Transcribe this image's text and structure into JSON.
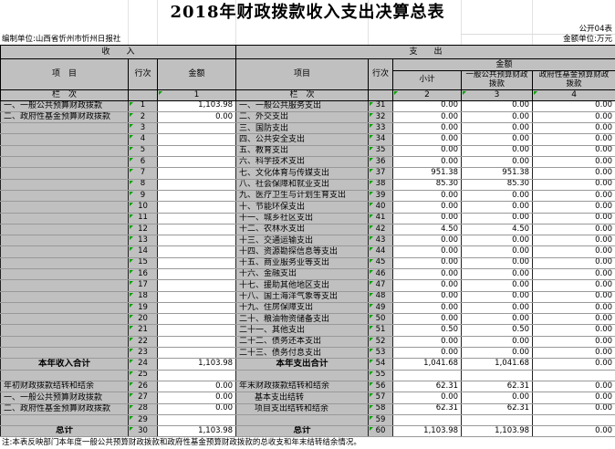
{
  "title": "2018年财政拨款收入支出决算总表",
  "meta": {
    "sheet_label": "公开04表",
    "org_label": "编制单位:山西省忻州市忻州日报社",
    "unit_label": "金额单位:万元"
  },
  "bands": {
    "income": "收　　入",
    "expense": "支　　出"
  },
  "columns": {
    "income_item": "项　目",
    "income_line": "行次",
    "income_amount": "金额",
    "expense_item": "项目",
    "expense_line": "行次",
    "amount_group": "金额",
    "subtotal": "小计",
    "general_budget": "一般公共预算财政拨款",
    "gov_fund_budget": "政府性基金预算财政拨款",
    "col_index_label": "栏　次",
    "col1": "1",
    "col2": "2",
    "col3": "3",
    "col4": "4"
  },
  "note": "注:本表反映部门本年度一般公共预算财政拨款和政府性基金预算财政拨款的总收支和年末结转结余情况。",
  "colors": {
    "cell_gray": "#c0c0c0",
    "marker_green": "#00a000",
    "grid_dark": "#222222",
    "grid_light": "#999999"
  },
  "rows": [
    {
      "il": "一、一般公共预算财政拨款",
      "in": "1",
      "ia": "1,103.98",
      "el": "一、一般公共服务支出",
      "en": "31",
      "sub": "0.00",
      "gen": "0.00",
      "gov": "0.00"
    },
    {
      "il": "二、政府性基金预算财政拨款",
      "in": "2",
      "ia": "0.00",
      "el": "二、外交支出",
      "en": "32",
      "sub": "0.00",
      "gen": "0.00",
      "gov": "0.00"
    },
    {
      "il": "",
      "in": "3",
      "ia": "",
      "el": "三、国防支出",
      "en": "33",
      "sub": "0.00",
      "gen": "0.00",
      "gov": "0.00"
    },
    {
      "il": "",
      "in": "4",
      "ia": "",
      "el": "四、公共安全支出",
      "en": "34",
      "sub": "0.00",
      "gen": "0.00",
      "gov": "0.00"
    },
    {
      "il": "",
      "in": "5",
      "ia": "",
      "el": "五、教育支出",
      "en": "35",
      "sub": "0.00",
      "gen": "0.00",
      "gov": "0.00"
    },
    {
      "il": "",
      "in": "6",
      "ia": "",
      "el": "六、科学技术支出",
      "en": "36",
      "sub": "0.00",
      "gen": "0.00",
      "gov": "0.00"
    },
    {
      "il": "",
      "in": "7",
      "ia": "",
      "el": "七、文化体育与传媒支出",
      "en": "37",
      "sub": "951.38",
      "gen": "951.38",
      "gov": "0.00"
    },
    {
      "il": "",
      "in": "8",
      "ia": "",
      "el": "八、社会保障和就业支出",
      "en": "38",
      "sub": "85.30",
      "gen": "85.30",
      "gov": "0.00"
    },
    {
      "il": "",
      "in": "9",
      "ia": "",
      "el": "九、医疗卫生与计划生育支出",
      "en": "39",
      "sub": "0.00",
      "gen": "0.00",
      "gov": "0.00"
    },
    {
      "il": "",
      "in": "10",
      "ia": "",
      "el": "十、节能环保支出",
      "en": "40",
      "sub": "0.00",
      "gen": "0.00",
      "gov": "0.00"
    },
    {
      "il": "",
      "in": "11",
      "ia": "",
      "el": "十一、城乡社区支出",
      "en": "41",
      "sub": "0.00",
      "gen": "0.00",
      "gov": "0.00"
    },
    {
      "il": "",
      "in": "12",
      "ia": "",
      "el": "十二、农林水支出",
      "en": "42",
      "sub": "4.50",
      "gen": "4.50",
      "gov": "0.00"
    },
    {
      "il": "",
      "in": "13",
      "ia": "",
      "el": "十三、交通运输支出",
      "en": "43",
      "sub": "0.00",
      "gen": "0.00",
      "gov": "0.00"
    },
    {
      "il": "",
      "in": "14",
      "ia": "",
      "el": "十四、资源勘探信息等支出",
      "en": "44",
      "sub": "0.00",
      "gen": "0.00",
      "gov": "0.00"
    },
    {
      "il": "",
      "in": "15",
      "ia": "",
      "el": "十五、商业服务业等支出",
      "en": "45",
      "sub": "0.00",
      "gen": "0.00",
      "gov": "0.00"
    },
    {
      "il": "",
      "in": "16",
      "ia": "",
      "el": "十六、金融支出",
      "en": "46",
      "sub": "0.00",
      "gen": "0.00",
      "gov": "0.00"
    },
    {
      "il": "",
      "in": "17",
      "ia": "",
      "el": "十七、援助其他地区支出",
      "en": "47",
      "sub": "0.00",
      "gen": "0.00",
      "gov": "0.00"
    },
    {
      "il": "",
      "in": "18",
      "ia": "",
      "el": "十八、国土海洋气象等支出",
      "en": "48",
      "sub": "0.00",
      "gen": "0.00",
      "gov": "0.00"
    },
    {
      "il": "",
      "in": "19",
      "ia": "",
      "el": "十九、住房保障支出",
      "en": "49",
      "sub": "0.00",
      "gen": "0.00",
      "gov": "0.00"
    },
    {
      "il": "",
      "in": "20",
      "ia": "",
      "el": "二十、粮油物资储备支出",
      "en": "50",
      "sub": "0.00",
      "gen": "0.00",
      "gov": "0.00"
    },
    {
      "il": "",
      "in": "21",
      "ia": "",
      "el": "二十一、其他支出",
      "en": "51",
      "sub": "0.50",
      "gen": "0.50",
      "gov": "0.00"
    },
    {
      "il": "",
      "in": "22",
      "ia": "",
      "el": "二十二、债务还本支出",
      "en": "52",
      "sub": "0.00",
      "gen": "0.00",
      "gov": "0.00"
    },
    {
      "il": "",
      "in": "23",
      "ia": "",
      "el": "二十三、债务付息支出",
      "en": "53",
      "sub": "0.00",
      "gen": "0.00",
      "gov": "0.00"
    },
    {
      "il": "本年收入合计",
      "in": "24",
      "ia": "1,103.98",
      "is": "t",
      "el": "本年支出合计",
      "en": "54",
      "sub": "1,041.68",
      "gen": "1,041.68",
      "gov": "0.00",
      "es": "t"
    },
    {
      "il": "",
      "in": "25",
      "ia": "",
      "el": "",
      "en": "55",
      "sub": "",
      "gen": "",
      "gov": ""
    },
    {
      "il": "年初财政拨款结转和结余",
      "in": "26",
      "ia": "0.00",
      "el": "年末财政拨款结转和结余",
      "en": "56",
      "sub": "62.31",
      "gen": "62.31",
      "gov": "0.00"
    },
    {
      "il": "一、一般公共预算财政拨款",
      "in": "27",
      "ia": "0.00",
      "el": "基本支出结转",
      "en": "57",
      "ei": true,
      "sub": "0.00",
      "gen": "0.00",
      "gov": "0.00"
    },
    {
      "il": "二、政府性基金预算财政拨款",
      "in": "28",
      "ia": "0.00",
      "el": "项目支出结转和结余",
      "en": "58",
      "ei": true,
      "sub": "62.31",
      "gen": "62.31",
      "gov": "0.00"
    },
    {
      "il": "",
      "in": "29",
      "ia": "",
      "el": "",
      "en": "59",
      "sub": "",
      "gen": "",
      "gov": ""
    },
    {
      "il": "总计",
      "in": "30",
      "ia": "1,103.98",
      "is": "t",
      "el": "总计",
      "en": "60",
      "sub": "1,103.98",
      "gen": "1,103.98",
      "gov": "0.00",
      "es": "t"
    }
  ]
}
